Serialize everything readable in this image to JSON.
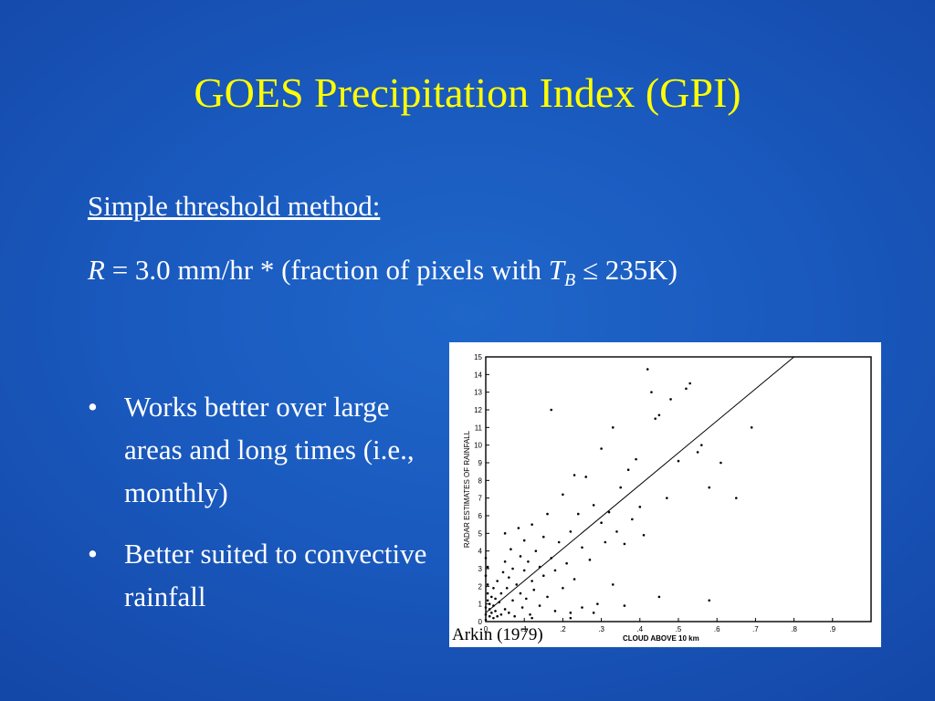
{
  "slide": {
    "title": "GOES Precipitation Index (GPI)",
    "subheading": "Simple threshold method:",
    "formula": {
      "lhs": "R",
      "equals": "=",
      "text1": "3.0 mm/hr * (fraction of pixels with ",
      "var": "T",
      "subscript": "B",
      "op": "≤",
      "text2": "235K)"
    },
    "bullets": [
      {
        "mark": "•",
        "text": "Works better over large areas and long times (i.e., monthly)"
      },
      {
        "mark": "•",
        "text": "Better suited to convective rainfall"
      }
    ],
    "figure_credit": "Arkin (1979)"
  },
  "colors": {
    "background": "#1a5abf",
    "title": "#ffff00",
    "text": "#ffffff",
    "figure_background": "#ffffff",
    "figure_ink": "#000000"
  },
  "chart_data": {
    "type": "scatter",
    "xlabel": "CLOUD ABOVE 10 km",
    "ylabel": "RADAR ESTIMATES OF RAINFALL",
    "xlim": [
      0,
      1.0
    ],
    "ylim": [
      0,
      15
    ],
    "x_ticks": [
      0,
      0.1,
      0.2,
      0.3,
      0.4,
      0.5,
      0.6,
      0.7,
      0.8,
      0.9
    ],
    "x_tick_labels": [
      "0",
      ".1",
      ".2",
      ".3",
      ".4",
      ".5",
      ".6",
      ".7",
      ".8",
      ".9"
    ],
    "y_ticks": [
      0,
      1,
      2,
      3,
      4,
      5,
      6,
      7,
      8,
      9,
      10,
      11,
      12,
      13,
      14,
      15
    ],
    "y_tick_labels": [
      "0",
      "1",
      "2",
      "3",
      "4",
      "5",
      "6",
      "7",
      "8",
      "9",
      "10",
      "11",
      "12",
      "13",
      "14",
      "15"
    ],
    "grid": false,
    "fit_line": {
      "x": [
        0,
        0.8
      ],
      "y": [
        0.5,
        15
      ]
    },
    "points": [
      [
        0.0,
        0.1
      ],
      [
        0.0,
        0.4
      ],
      [
        0.0,
        0.8
      ],
      [
        0.005,
        1.2
      ],
      [
        0.005,
        1.6
      ],
      [
        0.005,
        2.1
      ],
      [
        0.0,
        2.6
      ],
      [
        0.005,
        3.1
      ],
      [
        0.0,
        3.6
      ],
      [
        0.01,
        0.3
      ],
      [
        0.01,
        0.7
      ],
      [
        0.01,
        1.0
      ],
      [
        0.015,
        0.5
      ],
      [
        0.015,
        1.4
      ],
      [
        0.02,
        0.2
      ],
      [
        0.02,
        0.9
      ],
      [
        0.02,
        1.9
      ],
      [
        0.025,
        0.6
      ],
      [
        0.025,
        1.3
      ],
      [
        0.03,
        0.3
      ],
      [
        0.03,
        2.3
      ],
      [
        0.035,
        1.1
      ],
      [
        0.04,
        0.4
      ],
      [
        0.04,
        1.6
      ],
      [
        0.045,
        2.8
      ],
      [
        0.05,
        0.7
      ],
      [
        0.05,
        3.4
      ],
      [
        0.055,
        1.9
      ],
      [
        0.06,
        0.5
      ],
      [
        0.06,
        2.5
      ],
      [
        0.065,
        4.1
      ],
      [
        0.07,
        1.2
      ],
      [
        0.07,
        3.0
      ],
      [
        0.075,
        0.3
      ],
      [
        0.08,
        2.1
      ],
      [
        0.085,
        5.3
      ],
      [
        0.09,
        1.6
      ],
      [
        0.09,
        3.7
      ],
      [
        0.095,
        0.8
      ],
      [
        0.1,
        2.9
      ],
      [
        0.1,
        4.6
      ],
      [
        0.105,
        1.3
      ],
      [
        0.11,
        3.4
      ],
      [
        0.115,
        0.4
      ],
      [
        0.12,
        2.3
      ],
      [
        0.12,
        5.5
      ],
      [
        0.125,
        1.8
      ],
      [
        0.13,
        4.0
      ],
      [
        0.14,
        0.9
      ],
      [
        0.14,
        3.1
      ],
      [
        0.15,
        2.6
      ],
      [
        0.15,
        4.8
      ],
      [
        0.16,
        1.4
      ],
      [
        0.16,
        6.1
      ],
      [
        0.17,
        3.6
      ],
      [
        0.18,
        0.6
      ],
      [
        0.18,
        2.9
      ],
      [
        0.19,
        4.5
      ],
      [
        0.2,
        1.9
      ],
      [
        0.2,
        7.2
      ],
      [
        0.21,
        3.3
      ],
      [
        0.22,
        0.5
      ],
      [
        0.22,
        5.1
      ],
      [
        0.23,
        2.4
      ],
      [
        0.23,
        8.3
      ],
      [
        0.24,
        6.1
      ],
      [
        0.25,
        0.8
      ],
      [
        0.25,
        4.2
      ],
      [
        0.26,
        8.2
      ],
      [
        0.27,
        3.5
      ],
      [
        0.28,
        6.6
      ],
      [
        0.29,
        1.0
      ],
      [
        0.3,
        9.8
      ],
      [
        0.3,
        5.6
      ],
      [
        0.31,
        4.5
      ],
      [
        0.32,
        6.2
      ],
      [
        0.33,
        11.0
      ],
      [
        0.34,
        5.1
      ],
      [
        0.35,
        7.6
      ],
      [
        0.36,
        4.4
      ],
      [
        0.37,
        8.6
      ],
      [
        0.38,
        5.8
      ],
      [
        0.39,
        9.2
      ],
      [
        0.4,
        6.5
      ],
      [
        0.41,
        4.9
      ],
      [
        0.43,
        13.0
      ],
      [
        0.44,
        11.5
      ],
      [
        0.45,
        11.7
      ],
      [
        0.47,
        7.0
      ],
      [
        0.48,
        12.6
      ],
      [
        0.5,
        9.1
      ],
      [
        0.52,
        13.2
      ],
      [
        0.53,
        13.5
      ],
      [
        0.55,
        9.6
      ],
      [
        0.56,
        10.0
      ],
      [
        0.58,
        7.6
      ],
      [
        0.61,
        9.0
      ],
      [
        0.65,
        7.0
      ],
      [
        0.69,
        11.0
      ],
      [
        0.17,
        12.0
      ],
      [
        0.42,
        14.3
      ],
      [
        0.36,
        0.9
      ],
      [
        0.45,
        1.4
      ],
      [
        0.58,
        1.2
      ],
      [
        0.12,
        0.2
      ],
      [
        0.28,
        0.5
      ],
      [
        0.05,
        5.0
      ],
      [
        0.22,
        0.2
      ],
      [
        0.33,
        2.1
      ]
    ]
  }
}
